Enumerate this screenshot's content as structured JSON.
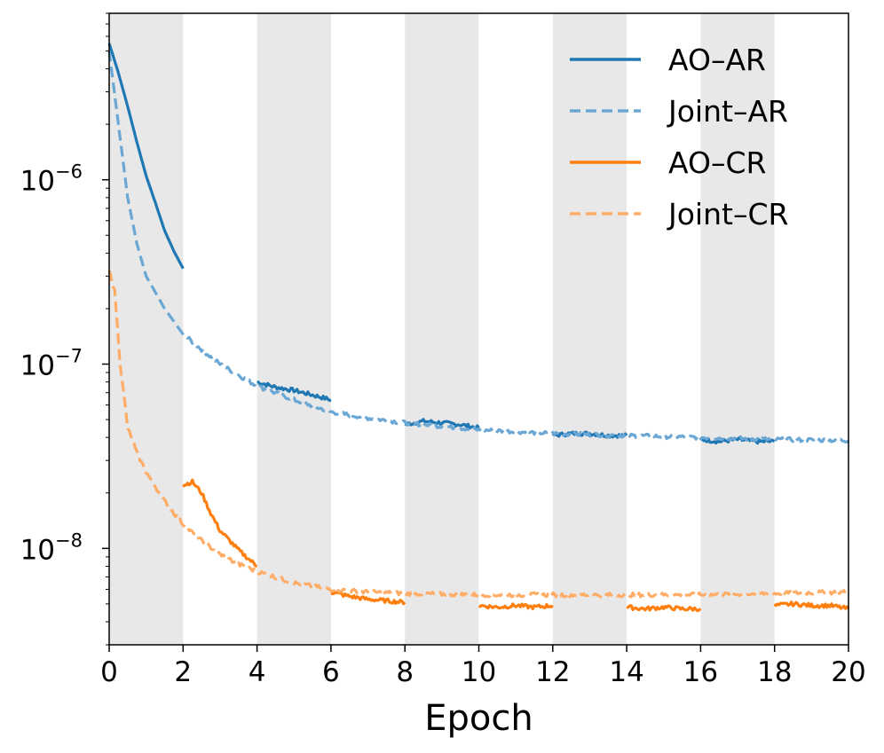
{
  "chart_data": {
    "type": "line",
    "title": "",
    "xlabel": "Epoch",
    "ylabel": "",
    "xlim": [
      0,
      20
    ],
    "ylim": [
      3e-09,
      8e-06
    ],
    "yscale": "log",
    "grid": false,
    "x_ticks": [
      "0",
      "2",
      "4",
      "6",
      "8",
      "10",
      "12",
      "14",
      "16",
      "18",
      "20"
    ],
    "y_ticks": [
      {
        "value": 1e-06,
        "base": "10",
        "exponent": "−6"
      },
      {
        "value": 1e-07,
        "base": "10",
        "exponent": "−7"
      },
      {
        "value": 1e-08,
        "base": "10",
        "exponent": "−8"
      }
    ],
    "shaded_x_ranges": [
      [
        0,
        2
      ],
      [
        4,
        6
      ],
      [
        8,
        10
      ],
      [
        12,
        14
      ],
      [
        16,
        18
      ]
    ],
    "legend_position": "upper right",
    "series": [
      {
        "name": "AO–AR",
        "color": "#1f77b4",
        "style": "solid",
        "segments": [
          {
            "x": [
              0,
              0.25,
              0.5,
              0.75,
              1.0,
              1.25,
              1.5,
              1.75,
              2.0
            ],
            "y": [
              5.5e-06,
              3.8e-06,
              2.5e-06,
              1.6e-06,
              1.05e-06,
              7.5e-07,
              5.3e-07,
              4.1e-07,
              3.3e-07
            ]
          },
          {
            "x": [
              4.0,
              4.5,
              5.0,
              5.5,
              6.0
            ],
            "y": [
              8e-08,
              7.5e-08,
              7.2e-08,
              6.8e-08,
              6.4e-08
            ]
          },
          {
            "x": [
              8.0,
              8.5,
              9.0,
              9.5,
              10.0
            ],
            "y": [
              4.7e-08,
              4.9e-08,
              4.8e-08,
              4.7e-08,
              4.5e-08
            ]
          },
          {
            "x": [
              12.0,
              12.5,
              13.0,
              13.5,
              14.0
            ],
            "y": [
              4.1e-08,
              4.2e-08,
              4.2e-08,
              4.1e-08,
              4.1e-08
            ]
          },
          {
            "x": [
              16.0,
              16.5,
              17.0,
              17.5,
              18.0
            ],
            "y": [
              3.9e-08,
              3.8e-08,
              3.9e-08,
              3.8e-08,
              3.8e-08
            ]
          }
        ]
      },
      {
        "name": "Joint–AR",
        "color": "#6aa7d4",
        "style": "dashed",
        "segments": [
          {
            "x": [
              0,
              0.25,
              0.5,
              0.75,
              1.0,
              1.5,
              2.0,
              2.5,
              3.0,
              4.0,
              5.0,
              6.0,
              7.0,
              8.0,
              9.0,
              10.0,
              12.0,
              14.0,
              16.0,
              18.0,
              20.0
            ],
            "y": [
              5e-06,
              2e-06,
              8e-07,
              4.5e-07,
              3e-07,
              2e-07,
              1.45e-07,
              1.2e-07,
              1e-07,
              7.6e-08,
              6.4e-08,
              5.5e-08,
              5.1e-08,
              4.8e-08,
              4.6e-08,
              4.4e-08,
              4.2e-08,
              4.1e-08,
              4e-08,
              3.9e-08,
              3.85e-08
            ]
          }
        ]
      },
      {
        "name": "AO–CR",
        "color": "#ff7f0e",
        "style": "solid",
        "segments": [
          {
            "x": [
              2.0,
              2.25,
              2.5,
              2.75,
              3.0,
              3.5,
              4.0
            ],
            "y": [
              2.2e-08,
              2.3e-08,
              2e-08,
              1.55e-08,
              1.25e-08,
              9.8e-09,
              8e-09
            ]
          },
          {
            "x": [
              6.0,
              6.5,
              7.0,
              7.5,
              8.0
            ],
            "y": [
              5.8e-09,
              5.5e-09,
              5.3e-09,
              5.2e-09,
              5.1e-09
            ]
          },
          {
            "x": [
              10.0,
              10.5,
              11.0,
              11.5,
              12.0
            ],
            "y": [
              4.9e-09,
              4.8e-09,
              4.9e-09,
              4.8e-09,
              4.9e-09
            ]
          },
          {
            "x": [
              14.0,
              14.5,
              15.0,
              15.5,
              16.0
            ],
            "y": [
              4.8e-09,
              4.7e-09,
              4.8e-09,
              4.7e-09,
              4.7e-09
            ]
          },
          {
            "x": [
              18.0,
              18.5,
              19.0,
              19.5,
              20.0
            ],
            "y": [
              4.9e-09,
              5e-09,
              4.9e-09,
              4.9e-09,
              4.7e-09
            ]
          }
        ]
      },
      {
        "name": "Joint–CR",
        "color": "#ffad66",
        "style": "dashed",
        "segments": [
          {
            "x": [
              0,
              0.15,
              0.3,
              0.5,
              0.75,
              1.0,
              1.5,
              2.0,
              2.5,
              3.0,
              3.5,
              4.0,
              5.0,
              6.0,
              7.0,
              8.0,
              10.0,
              12.0,
              14.0,
              16.0,
              18.0,
              20.0
            ],
            "y": [
              3.2e-07,
              2.5e-07,
              1e-07,
              4.5e-08,
              3.3e-08,
              2.6e-08,
              1.8e-08,
              1.35e-08,
              1.1e-08,
              9.3e-09,
              8.2e-09,
              7.5e-09,
              6.5e-09,
              6e-09,
              5.8e-09,
              5.7e-09,
              5.6e-09,
              5.6e-09,
              5.6e-09,
              5.6e-09,
              5.7e-09,
              5.8e-09
            ]
          }
        ]
      }
    ]
  }
}
